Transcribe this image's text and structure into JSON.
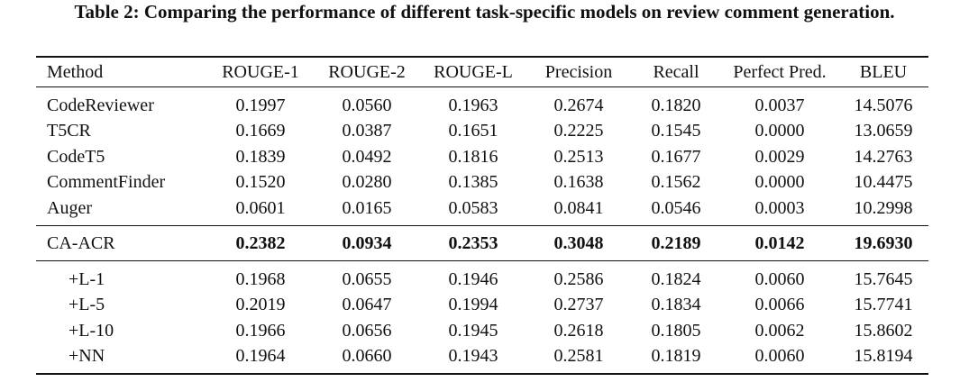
{
  "caption": "Table 2: Comparing the performance of different task-specific models on review comment generation.",
  "table": {
    "columns": [
      "Method",
      "ROUGE-1",
      "ROUGE-2",
      "ROUGE-L",
      "Precision",
      "Recall",
      "Perfect Pred.",
      "BLEU"
    ],
    "groups": [
      {
        "rows": [
          {
            "method": "CodeReviewer",
            "values": [
              "0.1997",
              "0.0560",
              "0.1963",
              "0.2674",
              "0.1820",
              "0.0037",
              "14.5076"
            ]
          },
          {
            "method": "T5CR",
            "values": [
              "0.1669",
              "0.0387",
              "0.1651",
              "0.2225",
              "0.1545",
              "0.0000",
              "13.0659"
            ]
          },
          {
            "method": "CodeT5",
            "values": [
              "0.1839",
              "0.0492",
              "0.1816",
              "0.2513",
              "0.1677",
              "0.0029",
              "14.2763"
            ]
          },
          {
            "method": "CommentFinder",
            "values": [
              "0.1520",
              "0.0280",
              "0.1385",
              "0.1638",
              "0.1562",
              "0.0000",
              "10.4475"
            ]
          },
          {
            "method": "Auger",
            "values": [
              "0.0601",
              "0.0165",
              "0.0583",
              "0.0841",
              "0.0546",
              "0.0003",
              "10.2998"
            ]
          }
        ]
      },
      {
        "rows": [
          {
            "method": "CA-ACR",
            "values": [
              "0.2382",
              "0.0934",
              "0.2353",
              "0.3048",
              "0.2189",
              "0.0142",
              "19.6930"
            ],
            "bold_values": true
          }
        ]
      },
      {
        "rows": [
          {
            "method": "+L-1",
            "values": [
              "0.1968",
              "0.0655",
              "0.1946",
              "0.2586",
              "0.1824",
              "0.0060",
              "15.7645"
            ],
            "indent": true
          },
          {
            "method": "+L-5",
            "values": [
              "0.2019",
              "0.0647",
              "0.1994",
              "0.2737",
              "0.1834",
              "0.0066",
              "15.7741"
            ],
            "indent": true
          },
          {
            "method": "+L-10",
            "values": [
              "0.1966",
              "0.0656",
              "0.1945",
              "0.2618",
              "0.1805",
              "0.0062",
              "15.8602"
            ],
            "indent": true
          },
          {
            "method": "+NN",
            "values": [
              "0.1964",
              "0.0660",
              "0.1943",
              "0.2581",
              "0.1819",
              "0.0060",
              "15.8194"
            ],
            "indent": true
          }
        ]
      }
    ]
  }
}
